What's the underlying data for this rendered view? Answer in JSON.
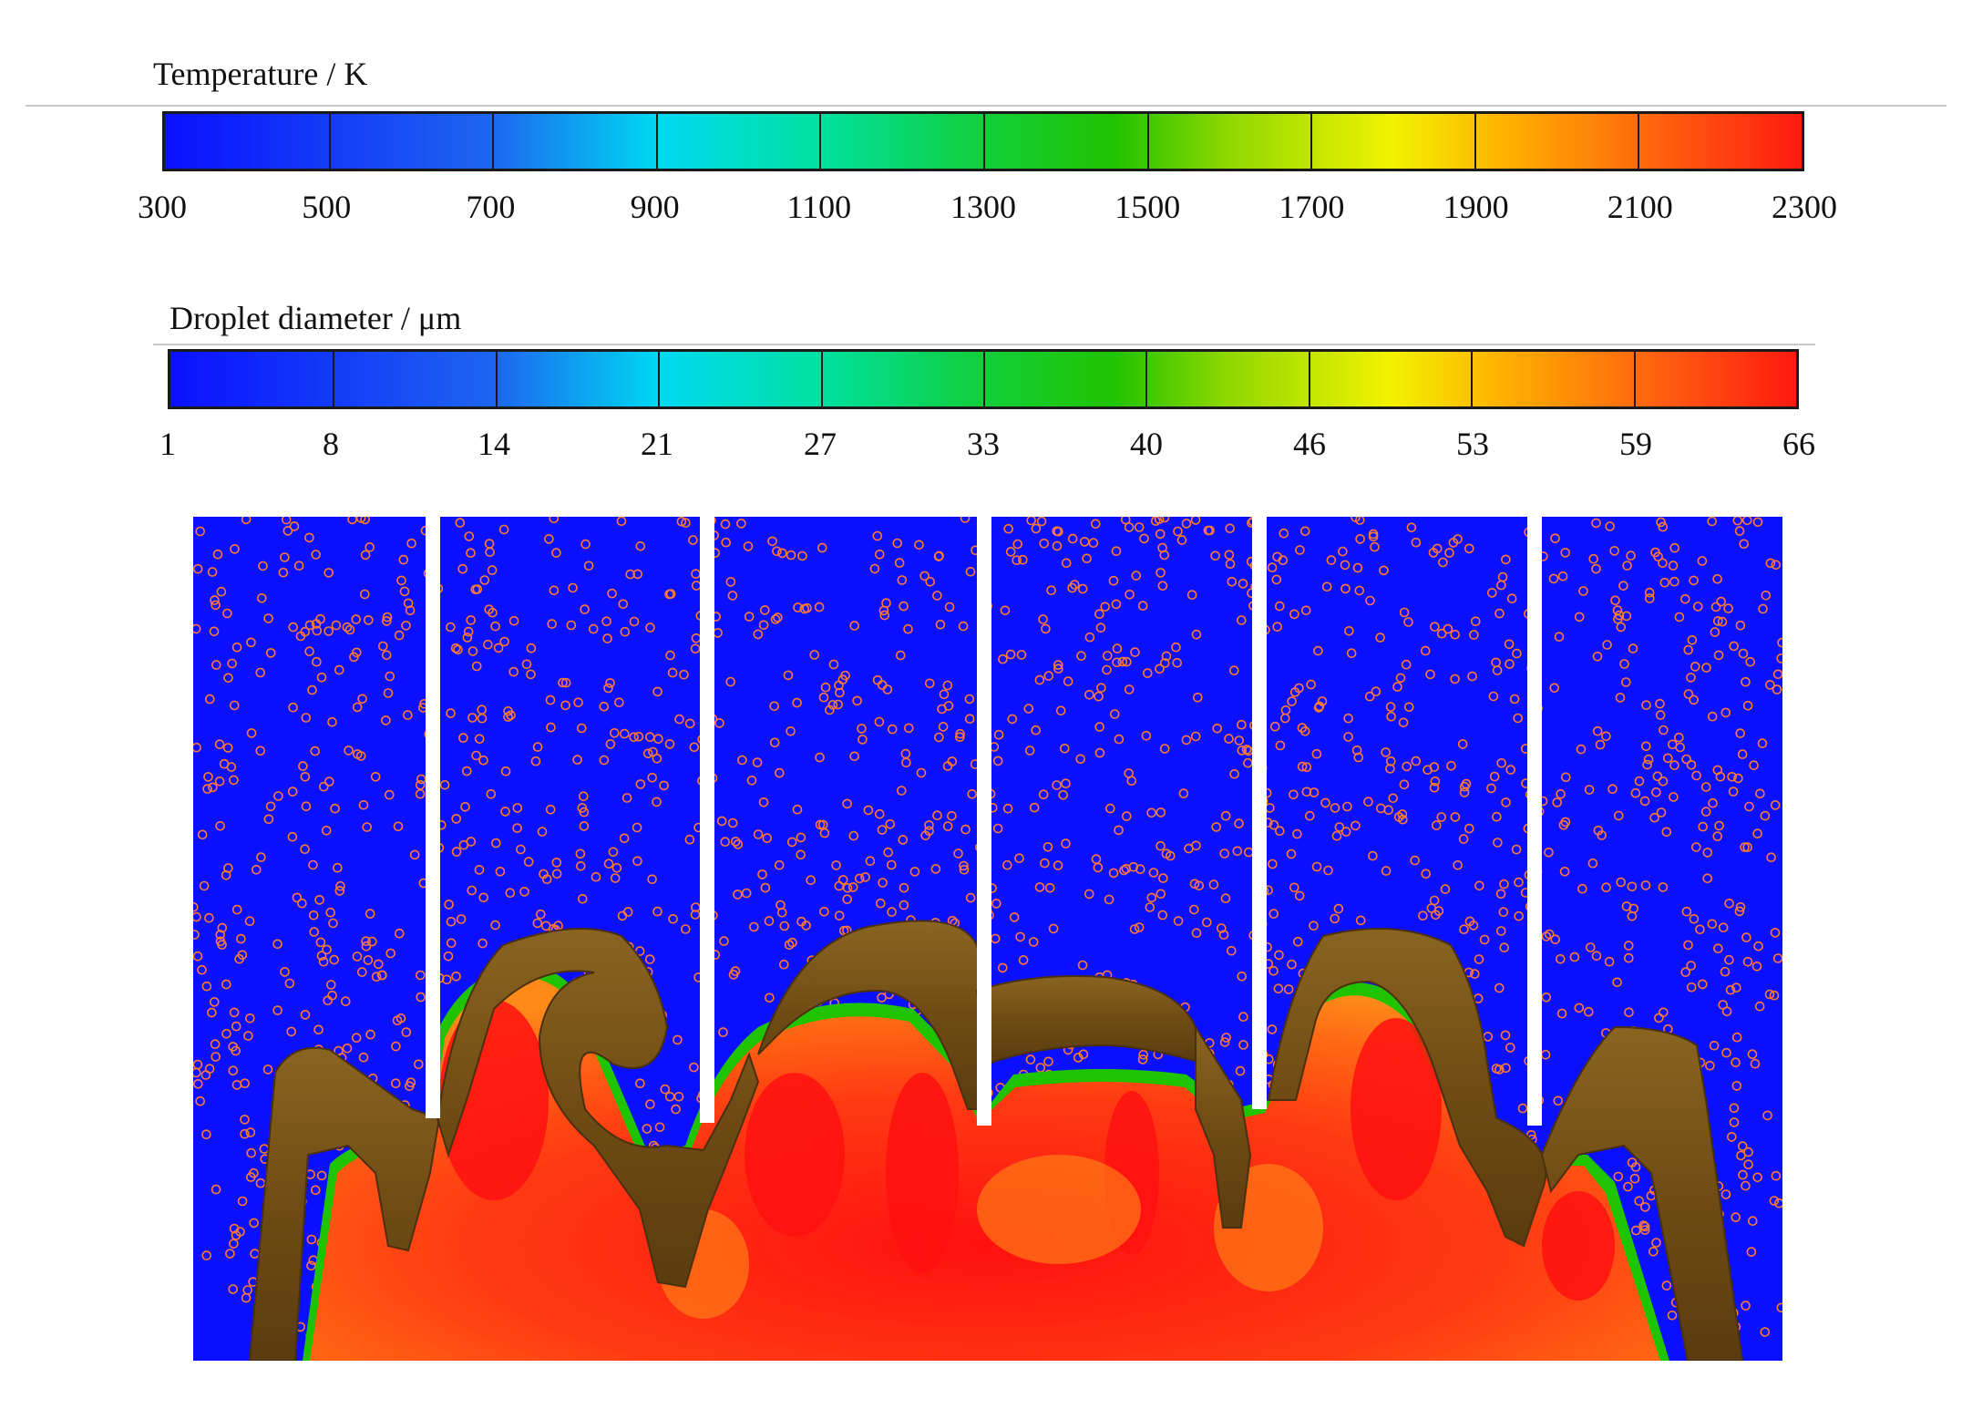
{
  "temperature_legend": {
    "title": "Temperature / K",
    "ticks": [
      "300",
      "500",
      "700",
      "900",
      "1100",
      "1300",
      "1500",
      "1700",
      "1900",
      "2100",
      "2300"
    ]
  },
  "droplet_legend": {
    "title": "Droplet diameter / μm",
    "ticks": [
      "1",
      "8",
      "14",
      "21",
      "27",
      "33",
      "40",
      "46",
      "53",
      "59",
      "66"
    ]
  },
  "colors": {
    "background_field": "#0a10ff",
    "flame_hot": "#ff1a10",
    "flame_edge": "#1fc300",
    "flame_surface": "#7a5418",
    "droplet_marker": "#ff7a30",
    "injector_wall": "#ffffff"
  }
}
